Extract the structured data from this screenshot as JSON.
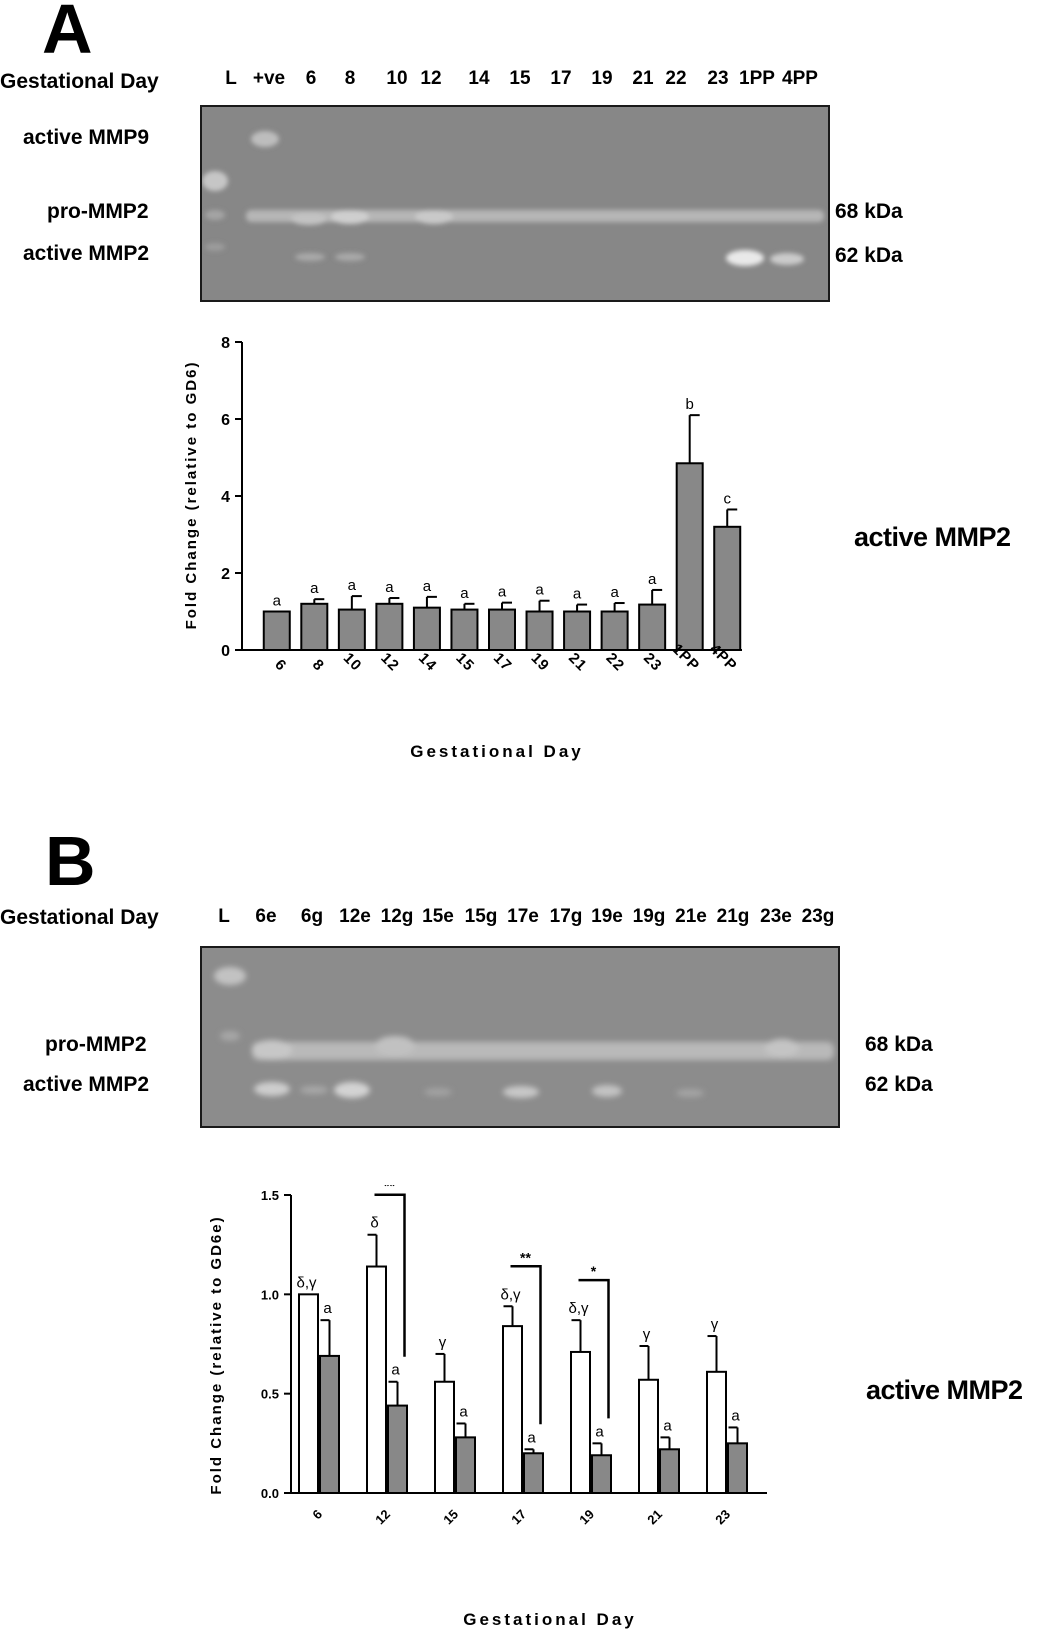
{
  "panel_a": {
    "letter": "A",
    "row_label": "Gestational Day",
    "lanes": [
      "L",
      "+ve",
      "6",
      "8",
      "10",
      "12",
      "14",
      "15",
      "17",
      "19",
      "21",
      "22",
      "23",
      "1PP",
      "4PP"
    ],
    "band_labels": [
      "active MMP9",
      "pro-MMP2",
      "active MMP2"
    ],
    "kda_labels": [
      "68 kDa",
      "62 kDa"
    ],
    "side_title": "active MMP2"
  },
  "panel_b": {
    "letter": "B",
    "row_label": "Gestational Day",
    "lanes": [
      "L",
      "6e",
      "6g",
      "12e",
      "12g",
      "15e",
      "15g",
      "17e",
      "17g",
      "19e",
      "19g",
      "21e",
      "21g",
      "23e",
      "23g"
    ],
    "band_labels": [
      "pro-MMP2",
      "active MMP2"
    ],
    "kda_labels": [
      "68 kDa",
      "62 kDa"
    ],
    "side_title": "active MMP2"
  },
  "colors": {
    "bar_fill": "#888888",
    "bar_stroke": "#000000",
    "open_bar_fill": "#ffffff",
    "gel": "#8a8a8a"
  },
  "chart_data": [
    {
      "type": "bar",
      "categories": [
        "6",
        "8",
        "10",
        "12",
        "14",
        "15",
        "17",
        "19",
        "21",
        "22",
        "23",
        "1PP",
        "4PP"
      ],
      "values": [
        1.0,
        1.2,
        1.05,
        1.2,
        1.1,
        1.05,
        1.05,
        1.0,
        1.0,
        1.0,
        1.18,
        4.85,
        3.2
      ],
      "errors": [
        0.0,
        0.12,
        0.35,
        0.15,
        0.28,
        0.15,
        0.18,
        0.28,
        0.18,
        0.22,
        0.38,
        1.25,
        0.45
      ],
      "sig_labels": [
        "a",
        "a",
        "a",
        "a",
        "a",
        "a",
        "a",
        "a",
        "a",
        "a",
        "a",
        "b",
        "c"
      ],
      "xlabel": "Gestational Day",
      "ylabel": "Fold Change  (relative to GD6)",
      "ylim": [
        0,
        8
      ],
      "yticks": [
        "0",
        "2",
        "4",
        "6",
        "8"
      ],
      "grid": false,
      "legend": "none"
    },
    {
      "type": "bar",
      "categories": [
        "6",
        "12",
        "15",
        "17",
        "19",
        "21",
        "23"
      ],
      "series": [
        {
          "values": [
            1.0,
            1.14,
            0.56,
            0.84,
            0.71,
            0.57,
            0.61
          ],
          "errors": [
            0.0,
            0.16,
            0.14,
            0.1,
            0.16,
            0.17,
            0.18
          ],
          "sig_labels": [
            "δ,γ",
            "δ",
            "γ",
            "δ,γ",
            "δ,γ",
            "γ",
            "γ"
          ],
          "fill": "open"
        },
        {
          "values": [
            0.69,
            0.44,
            0.28,
            0.2,
            0.19,
            0.22,
            0.25
          ],
          "errors": [
            0.18,
            0.12,
            0.07,
            0.02,
            0.06,
            0.06,
            0.08
          ],
          "sig_labels": [
            "a",
            "a",
            "a",
            "a",
            "a",
            "a",
            "a"
          ],
          "fill": "grey"
        }
      ],
      "brackets": [
        {
          "category": "12",
          "label": "**"
        },
        {
          "category": "17",
          "label": "**"
        },
        {
          "category": "19",
          "label": "*"
        }
      ],
      "xlabel": "Gestational Day",
      "ylabel": "Fold Change  (relative to GD6e)",
      "ylim": [
        0,
        1.5
      ],
      "yticks": [
        "0.0",
        "0.5",
        "1.0",
        "1.5"
      ],
      "grid": false,
      "legend": "none"
    }
  ]
}
